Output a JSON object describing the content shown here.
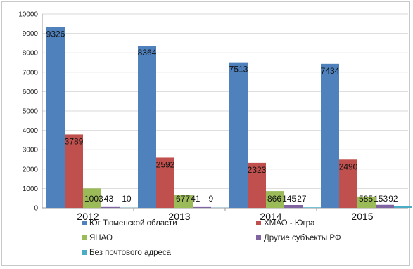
{
  "chart_data": {
    "type": "bar",
    "title": "",
    "xlabel": "",
    "ylabel": "",
    "ylim": [
      0,
      10000
    ],
    "yticks": [
      0,
      1000,
      2000,
      3000,
      4000,
      5000,
      6000,
      7000,
      8000,
      9000,
      10000
    ],
    "grid": true,
    "legend_position": "bottom",
    "categories": [
      "2012",
      "2013",
      "2014",
      "2015"
    ],
    "series": [
      {
        "name": "Юг Тюменской области",
        "color": "#4f81bd",
        "values": [
          9326,
          8364,
          7513,
          7434
        ],
        "labels": [
          "9326",
          "8364",
          "7513",
          "7434"
        ]
      },
      {
        "name": "ХМАО - Югра",
        "color": "#c0504d",
        "values": [
          3789,
          2592,
          2323,
          2490
        ],
        "labels": [
          "3789",
          "2592",
          "2323",
          "2490"
        ]
      },
      {
        "name": "ЯНАО",
        "color": "#9bbb59",
        "values": [
          1003,
          677,
          866,
          585
        ],
        "labels": [
          "1003",
          "677",
          "866",
          "585"
        ]
      },
      {
        "name": "Другие субъекты РФ",
        "color": "#8064a2",
        "values": [
          43,
          41,
          145,
          153
        ],
        "labels": [
          "43",
          "41",
          "145",
          "153"
        ]
      },
      {
        "name": "Без почтового адреса",
        "color": "#4bacc6",
        "values": [
          10,
          9,
          27,
          92
        ],
        "labels": [
          "10",
          "9",
          "27",
          "92"
        ]
      }
    ]
  }
}
